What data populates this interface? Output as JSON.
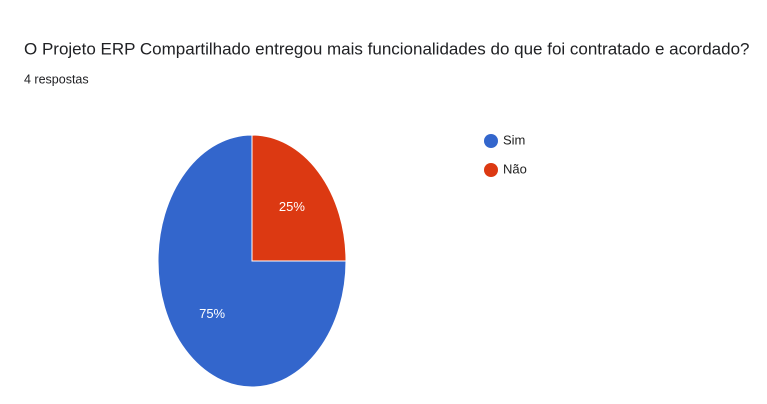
{
  "chart_data": {
    "type": "pie",
    "title": "O Projeto ERP Compartilhado entregou mais funcionalidades do que foi contratado e acordado?",
    "subtitle": "4 respostas",
    "categories": [
      "Sim",
      "Não"
    ],
    "values": [
      75,
      25
    ],
    "value_labels": [
      "75%",
      "25%"
    ],
    "colors": [
      "#3366cc",
      "#dc3912"
    ],
    "legend": "right"
  }
}
